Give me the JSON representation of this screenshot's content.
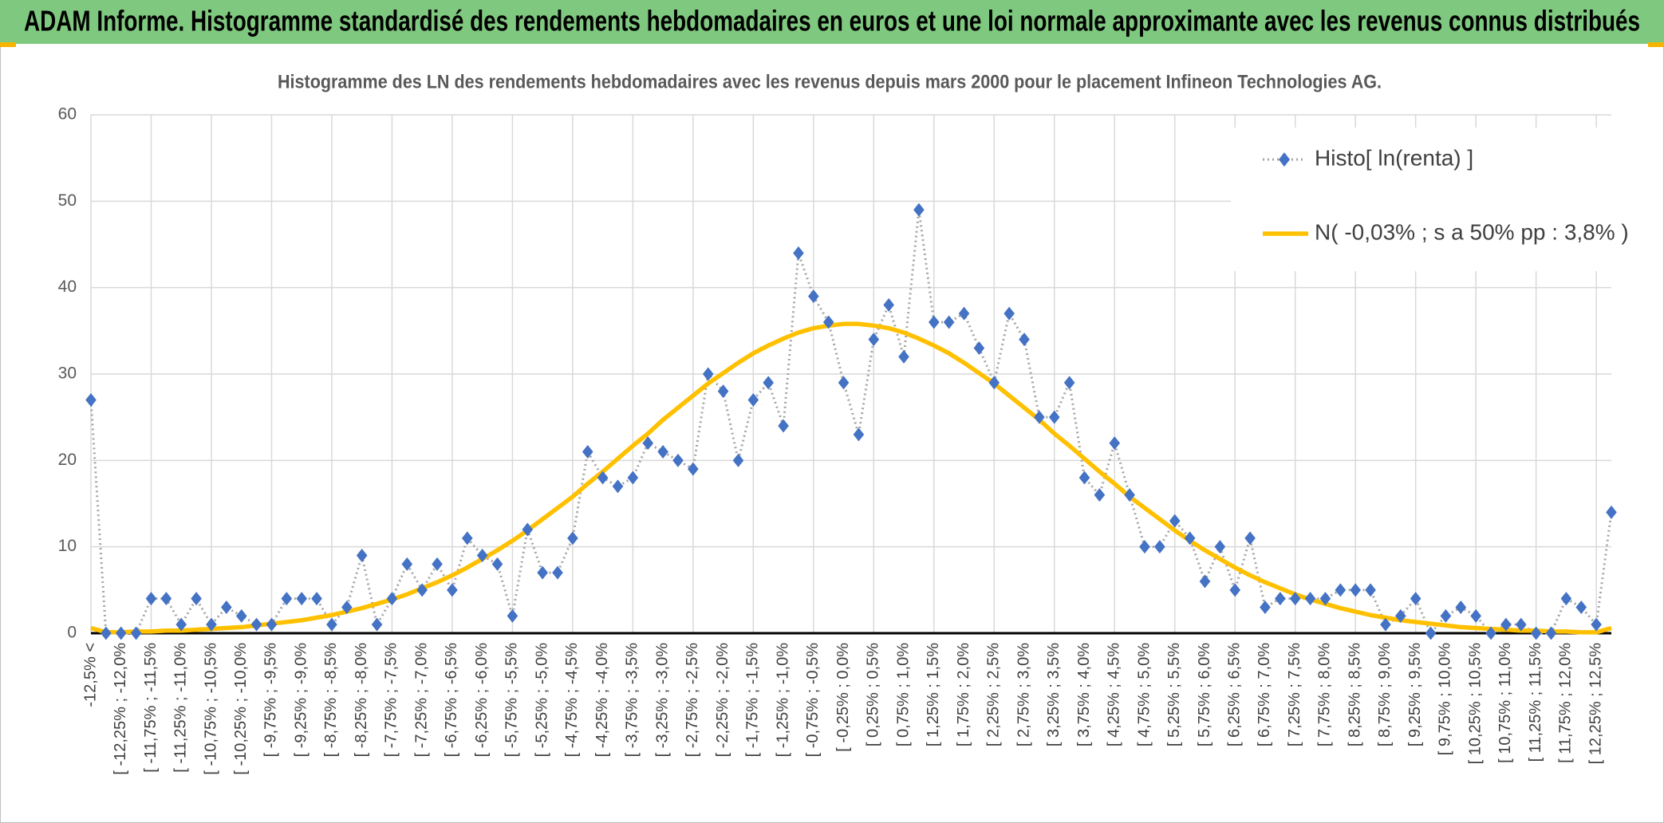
{
  "chart_data": {
    "type": "line",
    "header": "ADAM Informe. Histogramme standardisé des rendements hebdomadaires en euros et une loi normale approximante avec les revenus connus distribués",
    "title": "Histogramme des LN des rendements hebdomadaires avec les revenus depuis mars 2000 pour le placement Infineon Technologies AG.",
    "categories": [
      "-12,5% <",
      null,
      "[ -12,25% ; -12,0%",
      null,
      "[ -11,75% ; -11,5%",
      null,
      "[ -11,25% ; -11,0%",
      null,
      "[ -10,75% ; -10,5%",
      null,
      "[ -10,25% ; -10,0%",
      null,
      "[ -9,75% ; -9,5%",
      null,
      "[ -9,25% ; -9,0%",
      null,
      "[ -8,75% ; -8,5%",
      null,
      "[ -8,25% ; -8,0%",
      null,
      "[ -7,75% ; -7,5%",
      null,
      "[ -7,25% ; -7,0%",
      null,
      "[ -6,75% ; -6,5%",
      null,
      "[ -6,25% ; -6,0%",
      null,
      "[ -5,75% ; -5,5%",
      null,
      "[ -5,25% ; -5,0%",
      null,
      "[ -4,75% ; -4,5%",
      null,
      "[ -4,25% ; -4,0%",
      null,
      "[ -3,75% ; -3,5%",
      null,
      "[ -3,25% ; -3,0%",
      null,
      "[ -2,75% ; -2,5%",
      null,
      "[ -2,25% ; -2,0%",
      null,
      "[ -1,75% ; -1,5%",
      null,
      "[ -1,25% ; -1,0%",
      null,
      "[ -0,75% ; -0,5%",
      null,
      "[ -0,25% ; 0,0%",
      null,
      "[ 0,25% ; 0,5%",
      null,
      "[ 0,75% ; 1,0%",
      null,
      "[ 1,25% ; 1,5%",
      null,
      "[ 1,75% ; 2,0%",
      null,
      "[ 2,25% ; 2,5%",
      null,
      "[ 2,75% ; 3,0%",
      null,
      "[ 3,25% ; 3,5%",
      null,
      "[ 3,75% ; 4,0%",
      null,
      "[ 4,25% ; 4,5%",
      null,
      "[ 4,75% ; 5,0%",
      null,
      "[ 5,25% ; 5,5%",
      null,
      "[ 5,75% ; 6,0%",
      null,
      "[ 6,25% ; 6,5%",
      null,
      "[ 6,75% ; 7,0%",
      null,
      "[ 7,25% ; 7,5%",
      null,
      "[ 7,75% ; 8,0%",
      null,
      "[ 8,25% ; 8,5%",
      null,
      "[ 8,75% ; 9,0%",
      null,
      "[ 9,25% ; 9,5%",
      null,
      "[ 9,75% ; 10,0%",
      null,
      "[ 10,25% ; 10,5%",
      null,
      "[ 10,75% ; 11,0%",
      null,
      "[ 11,25% ; 11,5%",
      null,
      "[ 11,75% ; 12,0%",
      null,
      "[ 12,25% ; 12,5%",
      null
    ],
    "series": [
      {
        "name": "Histo[ ln(renta) ]",
        "color": "#4472c4",
        "line_color": "#a5a5a5",
        "values": [
          27,
          0,
          0,
          0,
          4,
          4,
          1,
          4,
          1,
          3,
          2,
          1,
          1,
          4,
          4,
          4,
          1,
          3,
          9,
          1,
          4,
          8,
          5,
          8,
          5,
          11,
          9,
          8,
          2,
          12,
          7,
          7,
          11,
          21,
          18,
          17,
          18,
          22,
          21,
          20,
          19,
          30,
          28,
          20,
          27,
          29,
          24,
          44,
          39,
          36,
          29,
          23,
          34,
          38,
          32,
          49,
          36,
          36,
          37,
          33,
          29,
          37,
          34,
          25,
          25,
          29,
          18,
          16,
          22,
          16,
          10,
          10,
          13,
          11,
          6,
          10,
          5,
          11,
          3,
          4,
          4,
          4,
          4,
          5,
          5,
          5,
          1,
          2,
          4,
          0,
          2,
          3,
          2,
          0,
          1,
          1,
          0,
          0,
          4,
          3,
          1,
          14
        ]
      },
      {
        "name": "N( -0,03% ; s a 50% pp : 3,8% )",
        "color": "#ffc000",
        "values": [
          0.6,
          0.1,
          0.1,
          0.2,
          0.2,
          0.3,
          0.3,
          0.4,
          0.5,
          0.6,
          0.7,
          0.9,
          1.1,
          1.3,
          1.5,
          1.8,
          2.1,
          2.5,
          2.9,
          3.4,
          3.9,
          4.5,
          5.2,
          5.9,
          6.7,
          7.6,
          8.6,
          9.6,
          10.7,
          11.9,
          13.2,
          14.5,
          15.8,
          17.3,
          18.7,
          20.2,
          21.7,
          23.1,
          24.7,
          26.1,
          27.5,
          28.9,
          30.1,
          31.3,
          32.4,
          33.3,
          34.1,
          34.8,
          35.3,
          35.6,
          35.8,
          35.8,
          35.6,
          35.3,
          34.8,
          34.1,
          33.3,
          32.4,
          31.3,
          30.1,
          28.9,
          27.5,
          26.1,
          24.7,
          23.1,
          21.7,
          20.2,
          18.7,
          17.3,
          15.8,
          14.5,
          13.2,
          11.9,
          10.7,
          9.6,
          8.6,
          7.6,
          6.7,
          5.9,
          5.2,
          4.5,
          3.9,
          3.4,
          2.9,
          2.5,
          2.1,
          1.8,
          1.5,
          1.3,
          1.1,
          0.9,
          0.7,
          0.6,
          0.5,
          0.4,
          0.3,
          0.3,
          0.2,
          0.2,
          0.1,
          0.1,
          0.6
        ]
      }
    ],
    "ylim": [
      0,
      60
    ],
    "yticks": [
      0,
      10,
      20,
      30,
      40,
      50,
      60
    ],
    "grid": true,
    "legend": "top-right"
  }
}
